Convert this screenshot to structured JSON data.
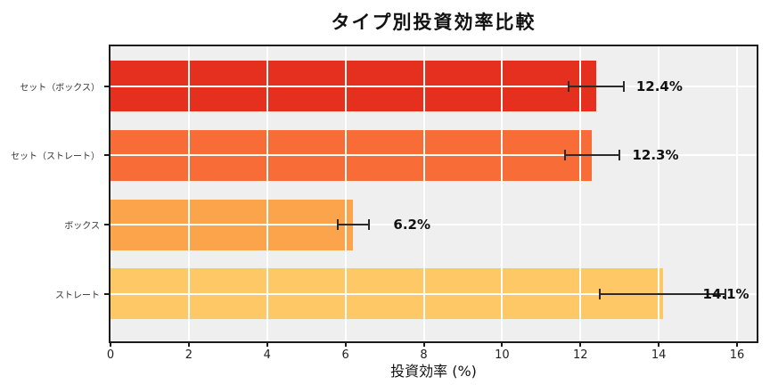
{
  "chart_data": {
    "type": "bar",
    "orientation": "horizontal",
    "title": "タイプ別投資効率比較",
    "xlabel": "投資効率 (%)",
    "categories": [
      "セット（ボックス）",
      "セット（ストレート）",
      "ボックス",
      "ストレート"
    ],
    "values": [
      12.4,
      12.3,
      6.2,
      14.1
    ],
    "errors": [
      0.7,
      0.7,
      0.4,
      1.6
    ],
    "value_labels": [
      "12.4%",
      "12.3%",
      "6.2%",
      "14.1%"
    ],
    "bar_colors": [
      "#e5301f",
      "#f86c38",
      "#fba44c",
      "#fdc865"
    ],
    "xticks": [
      "0",
      "2",
      "4",
      "6",
      "8",
      "10",
      "12",
      "14",
      "16"
    ],
    "xtick_values": [
      0,
      2,
      4,
      6,
      8,
      10,
      12,
      14,
      16
    ],
    "xlim": [
      0,
      16.5
    ],
    "grid": true,
    "plot_background": "#efefef",
    "grid_color": "#ffffff",
    "spine_color": "#1c1c1c",
    "error_bar_color": "#2b2b2b"
  }
}
